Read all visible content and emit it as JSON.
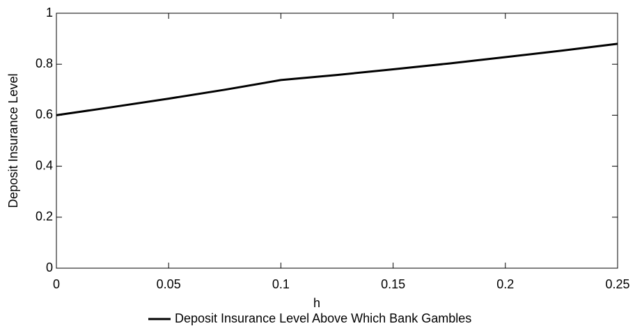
{
  "chart_data": {
    "type": "line",
    "xlabel": "h",
    "ylabel": "Deposit Insurance Level",
    "x": [
      0,
      0.025,
      0.05,
      0.075,
      0.1,
      0.125,
      0.15,
      0.175,
      0.2,
      0.225,
      0.25
    ],
    "series": [
      {
        "name": "Deposit Insurance Level Above Which Bank Gambles",
        "color": "#000000",
        "values": [
          0.6,
          0.632,
          0.665,
          0.7,
          0.738,
          0.758,
          0.78,
          0.803,
          0.828,
          0.853,
          0.88
        ]
      }
    ],
    "xlim": [
      0,
      0.25
    ],
    "xticks": [
      0,
      0.05,
      0.1,
      0.15,
      0.2,
      0.25
    ],
    "ylim": [
      0,
      1
    ],
    "yticks": [
      0,
      0.2,
      0.4,
      0.6,
      0.8,
      1
    ],
    "grid": false,
    "legend": "bottom"
  }
}
